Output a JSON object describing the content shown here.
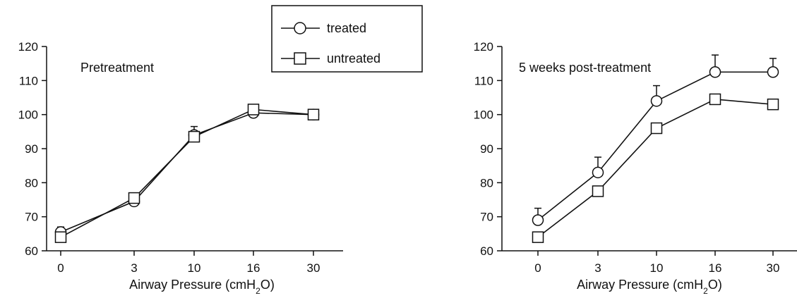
{
  "legend": {
    "entries": [
      {
        "label": "treated",
        "marker": "circle"
      },
      {
        "label": "untreated",
        "marker": "square"
      }
    ]
  },
  "chart_data": [
    {
      "type": "line",
      "title": "Pretreatment",
      "xlabel": "Airway Pressure (cmH",
      "xlabel_sub": "2",
      "xlabel_tail": "O)",
      "ylabel": "",
      "categories": [
        "0",
        "3",
        "10",
        "16",
        "30"
      ],
      "ylim": [
        60,
        120
      ],
      "yticks": [
        60,
        70,
        80,
        90,
        100,
        110,
        120
      ],
      "series": [
        {
          "name": "treated",
          "marker": "circle",
          "values": [
            65.5,
            74.5,
            94,
            100.5,
            100
          ],
          "errors": [
            1.5,
            1,
            2.5,
            1,
            0.5
          ]
        },
        {
          "name": "untreated",
          "marker": "square",
          "values": [
            64,
            75.5,
            93.5,
            101.5,
            100
          ],
          "errors": [
            0,
            0,
            0,
            0,
            0
          ]
        }
      ]
    },
    {
      "type": "line",
      "title": "5 weeks post-treatment",
      "xlabel": "Airway Pressure (cmH",
      "xlabel_sub": "2",
      "xlabel_tail": "O)",
      "ylabel": "",
      "categories": [
        "0",
        "3",
        "10",
        "16",
        "30"
      ],
      "ylim": [
        60,
        120
      ],
      "yticks": [
        60,
        70,
        80,
        90,
        100,
        110,
        120
      ],
      "series": [
        {
          "name": "treated",
          "marker": "circle",
          "values": [
            69,
            83,
            104,
            112.5,
            112.5
          ],
          "errors": [
            3.5,
            4.5,
            4.5,
            5,
            4
          ]
        },
        {
          "name": "untreated",
          "marker": "square",
          "values": [
            64,
            77.5,
            96,
            104.5,
            103
          ],
          "errors": [
            0,
            0,
            0,
            0,
            0
          ]
        }
      ]
    }
  ]
}
